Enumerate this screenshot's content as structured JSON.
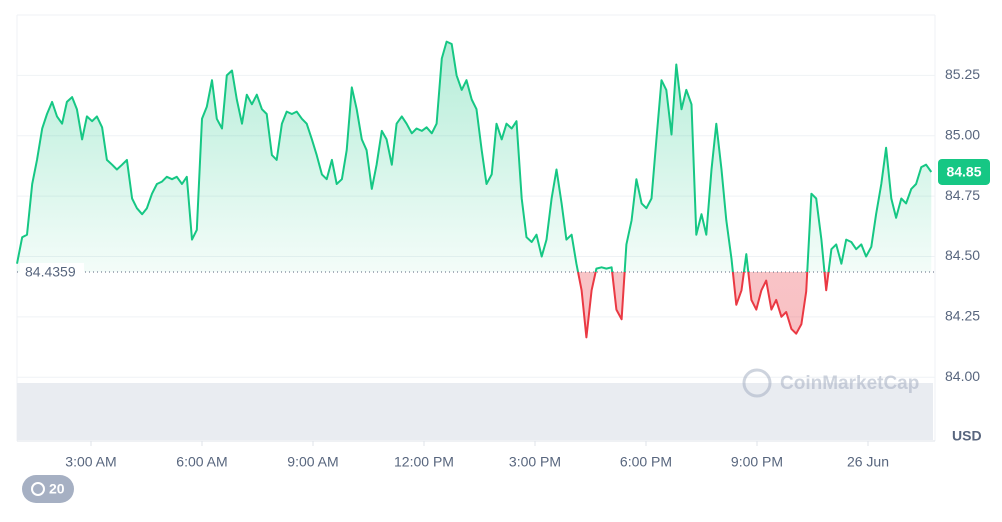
{
  "chart_data": {
    "type": "line",
    "x": [
      1.0,
      1.14,
      1.27,
      1.41,
      1.54,
      1.68,
      1.81,
      1.95,
      2.08,
      2.22,
      2.35,
      2.49,
      2.62,
      2.76,
      2.89,
      3.03,
      3.16,
      3.3,
      3.43,
      3.57,
      3.7,
      3.84,
      3.97,
      4.11,
      4.24,
      4.38,
      4.51,
      4.65,
      4.78,
      4.92,
      5.05,
      5.19,
      5.32,
      5.46,
      5.59,
      5.73,
      5.86,
      6.0,
      6.13,
      6.27,
      6.4,
      6.54,
      6.67,
      6.81,
      6.94,
      7.08,
      7.21,
      7.35,
      7.48,
      7.62,
      7.75,
      7.89,
      8.02,
      8.16,
      8.29,
      8.43,
      8.56,
      8.7,
      8.83,
      8.97,
      9.1,
      9.24,
      9.37,
      9.51,
      9.64,
      9.78,
      9.91,
      10.05,
      10.18,
      10.32,
      10.45,
      10.59,
      10.72,
      10.86,
      10.99,
      11.13,
      11.26,
      11.4,
      11.53,
      11.67,
      11.8,
      11.94,
      12.07,
      12.21,
      12.34,
      12.48,
      12.61,
      12.75,
      12.88,
      13.02,
      13.15,
      13.29,
      13.42,
      13.56,
      13.69,
      13.83,
      13.96,
      14.1,
      14.23,
      14.37,
      14.5,
      14.64,
      14.77,
      14.91,
      15.04,
      15.18,
      15.31,
      15.45,
      15.58,
      15.72,
      15.85,
      15.99,
      16.12,
      16.26,
      16.39,
      16.53,
      16.66,
      16.8,
      16.93,
      17.07,
      17.2,
      17.34,
      17.47,
      17.61,
      17.74,
      17.88,
      18.01,
      18.15,
      18.28,
      18.42,
      18.55,
      18.69,
      18.82,
      18.96,
      19.09,
      19.23,
      19.36,
      19.5,
      19.63,
      19.77,
      19.9,
      20.04,
      20.17,
      20.31,
      20.44,
      20.58,
      20.71,
      20.85,
      20.98,
      21.12,
      21.25,
      21.39,
      21.52,
      21.66,
      21.79,
      21.93,
      22.06,
      22.2,
      22.33,
      22.47,
      22.6,
      22.74,
      22.87,
      23.01,
      23.14,
      23.28,
      23.41,
      23.55,
      23.68,
      23.82,
      23.95,
      24.09,
      24.22,
      24.36,
      24.49,
      24.63,
      24.76,
      24.9,
      25.03,
      25.17,
      25.3,
      25.44,
      25.57,
      25.71
    ],
    "series": [
      {
        "name": "Price",
        "up_color": "#16c784",
        "down_color": "#ea3943",
        "values": [
          84.47,
          84.58,
          84.59,
          84.8,
          84.9,
          85.03,
          85.09,
          85.14,
          85.08,
          85.05,
          85.14,
          85.16,
          85.11,
          84.985,
          85.08,
          85.06,
          85.08,
          85.035,
          84.9,
          84.88,
          84.86,
          84.88,
          84.9,
          84.74,
          84.7,
          84.675,
          84.7,
          84.76,
          84.8,
          84.81,
          84.83,
          84.82,
          84.83,
          84.8,
          84.83,
          84.57,
          84.61,
          85.07,
          85.12,
          85.23,
          85.07,
          85.03,
          85.25,
          85.27,
          85.15,
          85.05,
          85.17,
          85.13,
          85.17,
          85.11,
          85.09,
          84.92,
          84.9,
          85.05,
          85.1,
          85.09,
          85.1,
          85.07,
          85.05,
          84.985,
          84.92,
          84.84,
          84.82,
          84.9,
          84.8,
          84.82,
          84.94,
          85.2,
          85.11,
          84.985,
          84.94,
          84.78,
          84.88,
          85.02,
          84.985,
          84.88,
          85.05,
          85.08,
          85.05,
          85.01,
          85.03,
          85.02,
          85.035,
          85.01,
          85.05,
          85.32,
          85.39,
          85.38,
          85.25,
          85.19,
          85.23,
          85.15,
          85.11,
          84.94,
          84.8,
          84.84,
          85.05,
          84.985,
          85.05,
          85.03,
          85.06,
          84.74,
          84.58,
          84.56,
          84.59,
          84.5,
          84.57,
          84.74,
          84.86,
          84.72,
          84.57,
          84.59,
          84.47,
          84.36,
          84.165,
          84.36,
          84.45,
          84.455,
          84.45,
          84.455,
          84.28,
          84.24,
          84.55,
          84.65,
          84.82,
          84.72,
          84.7,
          84.74,
          84.985,
          85.23,
          85.19,
          85.005,
          85.295,
          85.11,
          85.19,
          85.13,
          84.59,
          84.675,
          84.59,
          84.86,
          85.05,
          84.86,
          84.65,
          84.49,
          84.3,
          84.36,
          84.51,
          84.32,
          84.28,
          84.36,
          84.4,
          84.28,
          84.32,
          84.25,
          84.27,
          84.2,
          84.18,
          84.22,
          84.355,
          84.76,
          84.74,
          84.57,
          84.36,
          84.53,
          84.55,
          84.47,
          84.57,
          84.56,
          84.53,
          84.55,
          84.5,
          84.54,
          84.675,
          84.8,
          84.95,
          84.74,
          84.66,
          84.74,
          84.72,
          84.78,
          84.8,
          84.87,
          84.88,
          84.85
        ]
      }
    ],
    "baseline": 84.4359,
    "baseline_label": "84.4359",
    "current_price": 84.85,
    "current_price_label": "84.85",
    "xlim": [
      1.0,
      25.73
    ],
    "ylim": [
      83.74,
      85.5
    ],
    "xticks": [
      {
        "value": 3,
        "label": "3:00 AM"
      },
      {
        "value": 6,
        "label": "6:00 AM"
      },
      {
        "value": 9,
        "label": "9:00 AM"
      },
      {
        "value": 12,
        "label": "12:00 PM"
      },
      {
        "value": 15,
        "label": "3:00 PM"
      },
      {
        "value": 18,
        "label": "6:00 PM"
      },
      {
        "value": 21,
        "label": "9:00 PM"
      },
      {
        "value": 24,
        "label": "26 Jun"
      }
    ],
    "yticks": [
      {
        "value": 84,
        "label": "84.00"
      },
      {
        "value": 84.25,
        "label": "84.25"
      },
      {
        "value": 84.5,
        "label": "84.50"
      },
      {
        "value": 84.75,
        "label": "84.75"
      },
      {
        "value": 85,
        "label": "85.00"
      },
      {
        "value": 85.25,
        "label": "85.25"
      }
    ],
    "y_unit": "USD",
    "watermark": "CoinMarketCap",
    "badge": "20",
    "grid": true
  }
}
